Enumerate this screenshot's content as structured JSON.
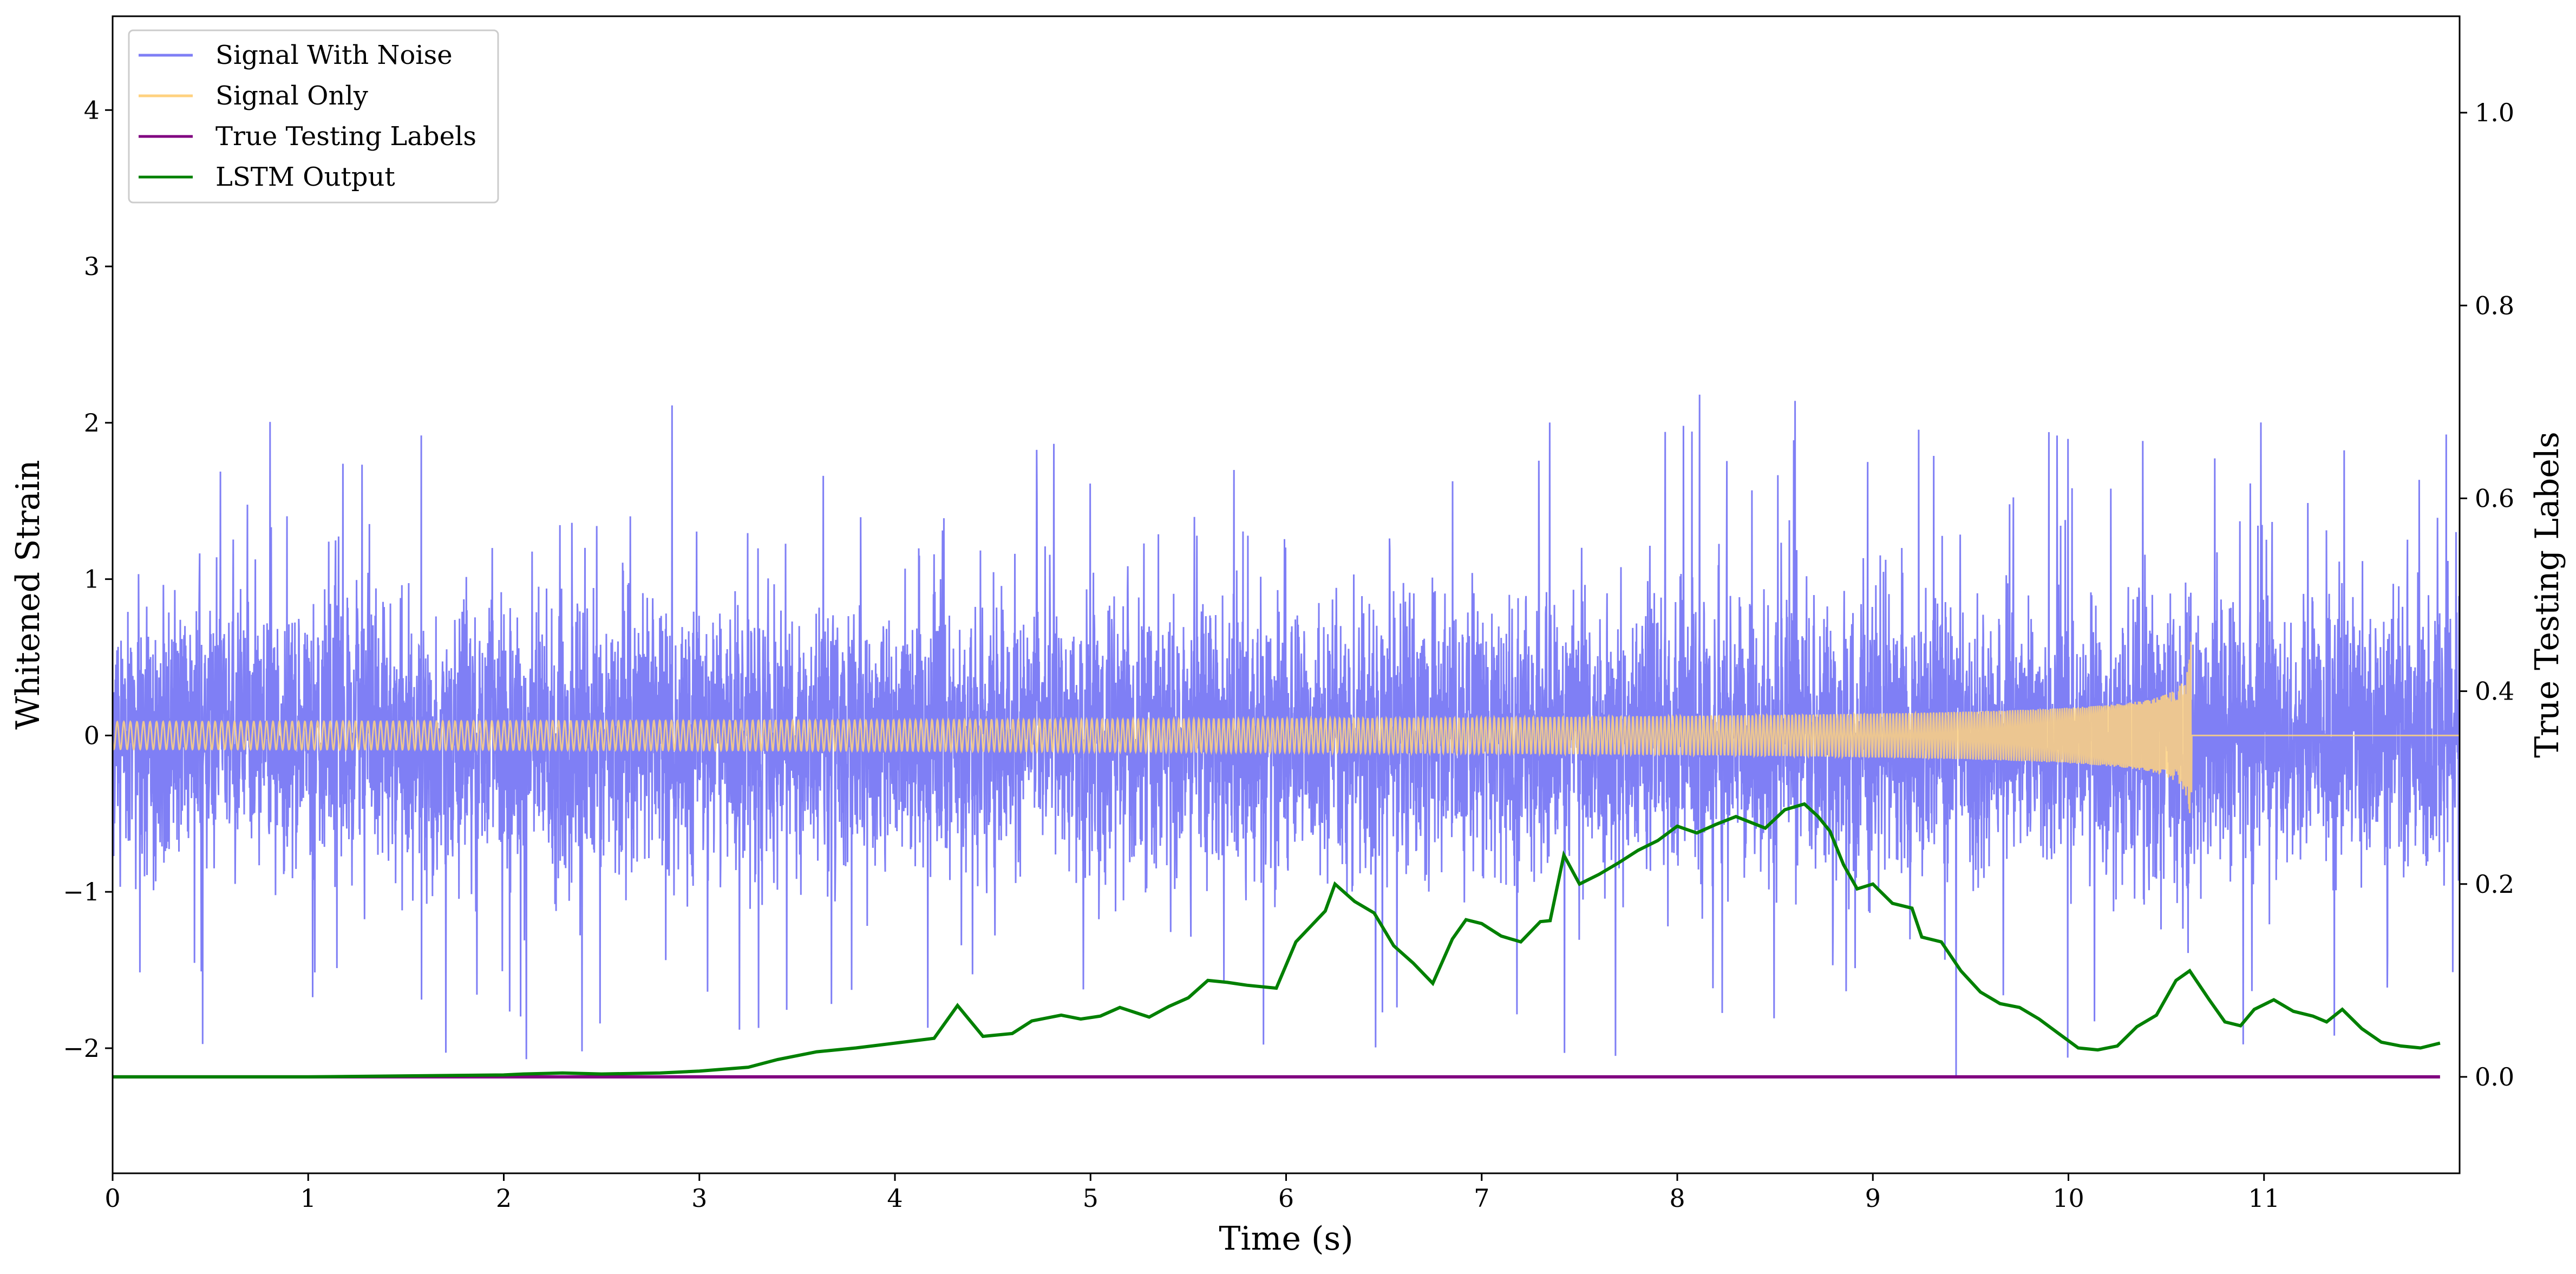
{
  "chart_data": {
    "type": "line",
    "xlabel": "Time (s)",
    "ylabel": "Whitened Strain",
    "y2label": "True Testing Labels",
    "xlim": [
      0,
      12
    ],
    "ylim": [
      -2.8,
      4.6
    ],
    "y2lim": [
      -0.1,
      1.1
    ],
    "x_ticks": [
      0,
      1,
      2,
      3,
      4,
      5,
      6,
      7,
      8,
      9,
      10,
      11
    ],
    "y_ticks": [
      -2,
      -1,
      0,
      1,
      2,
      3,
      4
    ],
    "y2_ticks": [
      0.0,
      0.2,
      0.4,
      0.6,
      0.8,
      1.0
    ],
    "y_tick_labels": [
      "−2",
      "−1",
      "0",
      "1",
      "2",
      "3",
      "4"
    ],
    "y2_tick_labels": [
      "0.0",
      "0.2",
      "0.4",
      "0.6",
      "0.8",
      "1.0"
    ],
    "legend_placement": "top-left",
    "grid": false,
    "series": [
      {
        "name": "Signal With Noise",
        "axis": "left",
        "color": "#7f7ff5",
        "kind": "noise",
        "sample_rate": 2048,
        "typical_peak": 1.3,
        "max_abs": 2.1
      },
      {
        "name": "Signal Only",
        "axis": "left",
        "color": "#ffd27f",
        "kind": "chirp",
        "merger_time": 10.63,
        "peak_amplitude": 0.63
      },
      {
        "name": "True Testing Labels",
        "axis": "right",
        "color": "#800080",
        "x": [
          0,
          11.9
        ],
        "y": [
          0.0,
          0.0
        ]
      },
      {
        "name": "LSTM Output",
        "axis": "right",
        "color": "#008000",
        "x": [
          0.0,
          0.5,
          1.0,
          1.5,
          2.0,
          2.1,
          2.3,
          2.5,
          2.8,
          3.0,
          3.25,
          3.4,
          3.6,
          3.8,
          4.0,
          4.2,
          4.32,
          4.45,
          4.6,
          4.7,
          4.85,
          4.95,
          5.05,
          5.15,
          5.3,
          5.4,
          5.5,
          5.6,
          5.7,
          5.8,
          5.95,
          6.05,
          6.2,
          6.25,
          6.35,
          6.45,
          6.55,
          6.65,
          6.75,
          6.85,
          6.92,
          7.0,
          7.1,
          7.2,
          7.3,
          7.35,
          7.42,
          7.5,
          7.6,
          7.7,
          7.8,
          7.9,
          8.0,
          8.1,
          8.2,
          8.3,
          8.45,
          8.55,
          8.65,
          8.72,
          8.78,
          8.85,
          8.92,
          9.0,
          9.1,
          9.2,
          9.25,
          9.35,
          9.45,
          9.55,
          9.65,
          9.75,
          9.85,
          9.95,
          10.05,
          10.15,
          10.25,
          10.35,
          10.45,
          10.55,
          10.62,
          10.72,
          10.8,
          10.88,
          10.95,
          11.05,
          11.15,
          11.25,
          11.32,
          11.4,
          11.5,
          11.6,
          11.7,
          11.8,
          11.9
        ],
        "y": [
          0.0,
          0.0,
          0.0,
          0.001,
          0.002,
          0.003,
          0.004,
          0.003,
          0.004,
          0.006,
          0.01,
          0.018,
          0.026,
          0.03,
          0.035,
          0.04,
          0.074,
          0.042,
          0.045,
          0.058,
          0.064,
          0.06,
          0.063,
          0.072,
          0.062,
          0.073,
          0.082,
          0.1,
          0.098,
          0.095,
          0.092,
          0.14,
          0.172,
          0.2,
          0.182,
          0.17,
          0.136,
          0.118,
          0.097,
          0.143,
          0.163,
          0.159,
          0.146,
          0.14,
          0.161,
          0.162,
          0.23,
          0.2,
          0.21,
          0.222,
          0.235,
          0.245,
          0.26,
          0.253,
          0.262,
          0.27,
          0.258,
          0.277,
          0.283,
          0.27,
          0.255,
          0.22,
          0.195,
          0.2,
          0.18,
          0.175,
          0.145,
          0.14,
          0.11,
          0.088,
          0.076,
          0.072,
          0.06,
          0.045,
          0.03,
          0.028,
          0.032,
          0.052,
          0.064,
          0.1,
          0.11,
          0.08,
          0.057,
          0.053,
          0.07,
          0.08,
          0.068,
          0.063,
          0.057,
          0.07,
          0.05,
          0.036,
          0.032,
          0.03,
          0.035
        ]
      }
    ]
  }
}
